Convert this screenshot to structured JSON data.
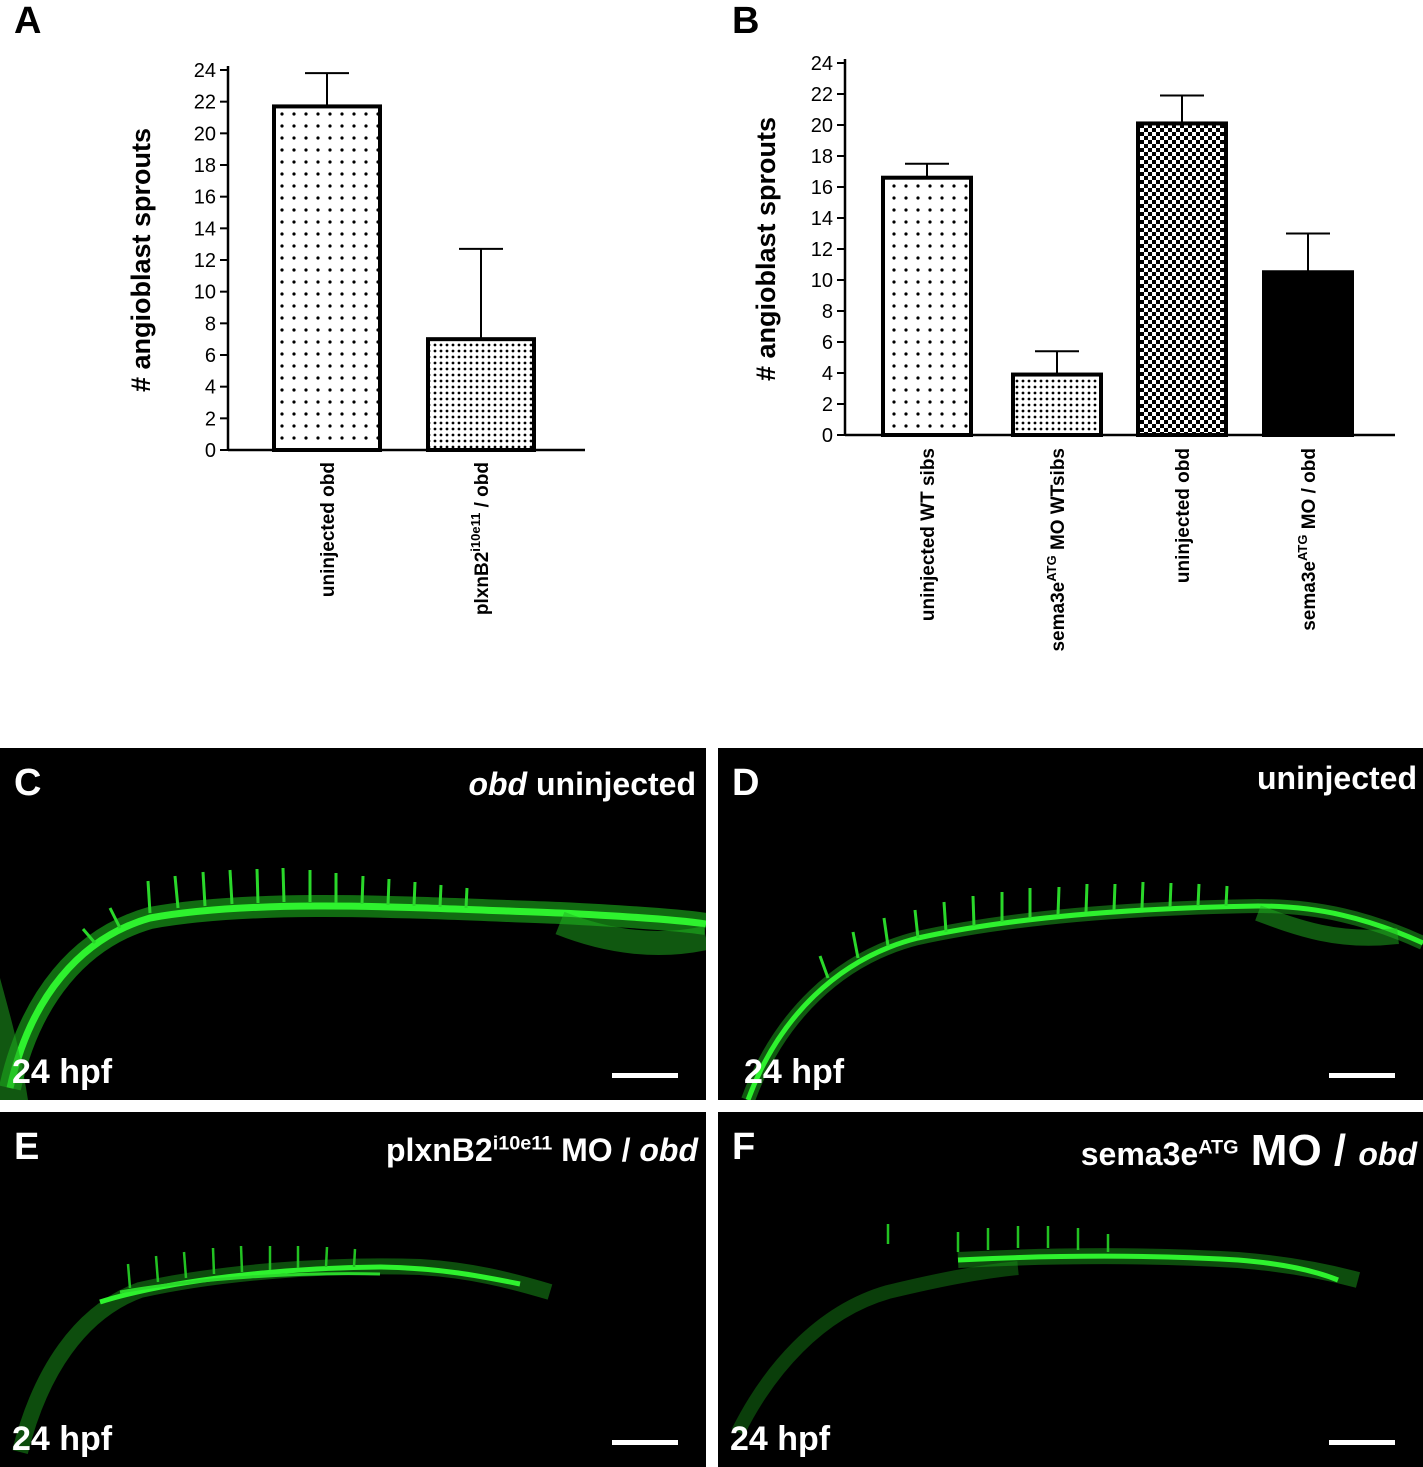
{
  "panels": {
    "A": "A",
    "B": "B",
    "C": "C",
    "D": "D",
    "E": "E",
    "F": "F"
  },
  "chart_data": [
    {
      "type": "bar",
      "panel": "A",
      "ylabel": "# angioblast sprouts",
      "ylim": [
        0,
        24
      ],
      "yticks": [
        0,
        2,
        4,
        6,
        8,
        10,
        12,
        14,
        16,
        18,
        20,
        22,
        24
      ],
      "categories": [
        "uninjected obd",
        "plxnB2 i10e11 / obd"
      ],
      "category_labels": [
        {
          "main": "uninjected obd",
          "sup": "",
          "rest": ""
        },
        {
          "main": "plxnB2",
          "sup": "i10e11",
          "rest": " / obd"
        }
      ],
      "values": [
        21.7,
        7.0
      ],
      "errors": [
        2.1,
        5.7
      ],
      "patterns": [
        "sparse-dots",
        "dense-dots"
      ]
    },
    {
      "type": "bar",
      "panel": "B",
      "ylabel": "# angioblast sprouts",
      "ylim": [
        0,
        24
      ],
      "yticks": [
        0,
        2,
        4,
        6,
        8,
        10,
        12,
        14,
        16,
        18,
        20,
        22,
        24
      ],
      "categories": [
        "uninjected WT sibs",
        "sema3e ATG MO WTsibs",
        "uninjected obd",
        "sema3e ATG MO / obd"
      ],
      "category_labels": [
        {
          "main": "uninjected WT sibs",
          "sup": "",
          "rest": ""
        },
        {
          "main": "sema3e",
          "sup": "ATG",
          "rest": " MO WTsibs"
        },
        {
          "main": "uninjected obd",
          "sup": "",
          "rest": ""
        },
        {
          "main": "sema3e",
          "sup": "ATG",
          "rest": " MO / obd"
        }
      ],
      "values": [
        16.6,
        3.9,
        20.1,
        10.5
      ],
      "errors": [
        0.9,
        1.5,
        1.8,
        2.5
      ],
      "patterns": [
        "sparse-dots",
        "dense-dots",
        "checker",
        "solid"
      ]
    }
  ],
  "micrographs": [
    {
      "id": "C",
      "title_italic": "obd",
      "title_rest": " uninjected",
      "stage": "24 hpf"
    },
    {
      "id": "D",
      "title_rest": "uninjected",
      "stage": "24 hpf"
    },
    {
      "id": "E",
      "title_main": "plxnB2",
      "title_sup": "i10e11",
      "title_rest": " MO / ",
      "title_italic": "obd",
      "stage": "24 hpf"
    },
    {
      "id": "F",
      "title_main": "sema3e",
      "title_sup": "ATG",
      "title_rest": " MO / ",
      "title_italic": "obd",
      "stage": "24 hpf"
    }
  ],
  "colors": {
    "vessel": "#22dd22",
    "background_micrograph": "#000000",
    "bar_solid": "#000000"
  }
}
